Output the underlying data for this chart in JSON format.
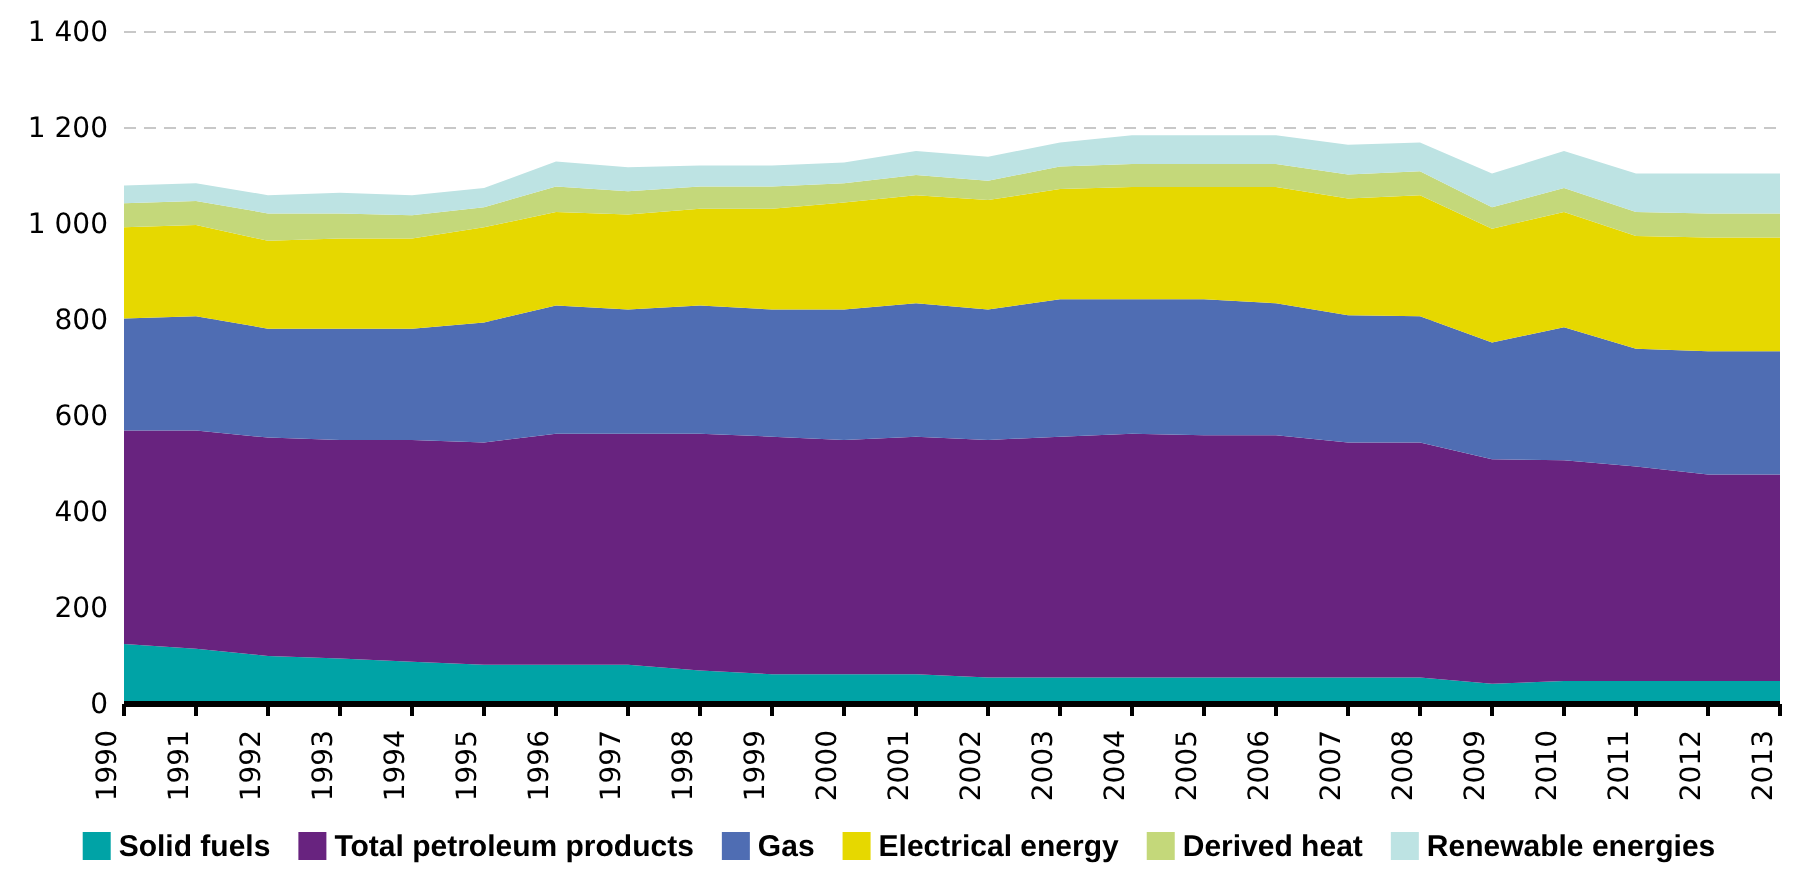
{
  "chart_data": {
    "type": "area",
    "stacked": true,
    "categories": [
      "1990",
      "1991",
      "1992",
      "1993",
      "1994",
      "1995",
      "1996",
      "1997",
      "1998",
      "1999",
      "2000",
      "2001",
      "2002",
      "2003",
      "2004",
      "2005",
      "2006",
      "2007",
      "2008",
      "2009",
      "2010",
      "2011",
      "2012",
      "2013"
    ],
    "series": [
      {
        "name": "Solid fuels",
        "color": "#00a3a6",
        "values": [
          125,
          115,
          100,
          95,
          88,
          82,
          82,
          82,
          70,
          62,
          62,
          62,
          55,
          55,
          55,
          55,
          55,
          55,
          55,
          42,
          48,
          48,
          48,
          48
        ]
      },
      {
        "name": "Total petroleum products",
        "color": "#68237f",
        "values": [
          445,
          455,
          455,
          455,
          462,
          463,
          481,
          481,
          493,
          495,
          488,
          495,
          495,
          502,
          508,
          505,
          505,
          490,
          490,
          468,
          460,
          447,
          430,
          430
        ]
      },
      {
        "name": "Gas",
        "color": "#4f6db3",
        "values": [
          233,
          238,
          227,
          232,
          232,
          250,
          267,
          259,
          267,
          265,
          272,
          278,
          272,
          286,
          280,
          283,
          275,
          265,
          263,
          243,
          277,
          245,
          257,
          257
        ]
      },
      {
        "name": "Electrical energy",
        "color": "#e6d800",
        "values": [
          190,
          190,
          183,
          188,
          188,
          198,
          195,
          198,
          202,
          210,
          223,
          225,
          228,
          230,
          234,
          234,
          242,
          243,
          252,
          237,
          240,
          235,
          237,
          237
        ]
      },
      {
        "name": "Derived heat",
        "color": "#c4d87a",
        "values": [
          50,
          50,
          57,
          52,
          48,
          42,
          53,
          48,
          46,
          46,
          40,
          42,
          40,
          47,
          48,
          48,
          48,
          50,
          50,
          45,
          50,
          50,
          50,
          50
        ]
      },
      {
        "name": "Renewable energies",
        "color": "#bde3e3",
        "values": [
          37,
          37,
          38,
          43,
          42,
          40,
          52,
          50,
          44,
          44,
          43,
          50,
          50,
          50,
          60,
          60,
          60,
          62,
          60,
          70,
          77,
          80,
          83,
          83
        ]
      }
    ],
    "ylim": [
      0,
      1400
    ],
    "yticks": [
      0,
      {
        "value": 200,
        "label": "200"
      },
      {
        "value": 400,
        "label": "400"
      },
      {
        "value": 600,
        "label": "600"
      },
      {
        "value": 800,
        "label": "800"
      },
      {
        "value": 1000,
        "label": "1 000"
      },
      {
        "value": 1200,
        "label": "1 200"
      },
      {
        "value": 1400,
        "label": "1 400"
      }
    ],
    "grid": "y",
    "legend": "bottom"
  }
}
